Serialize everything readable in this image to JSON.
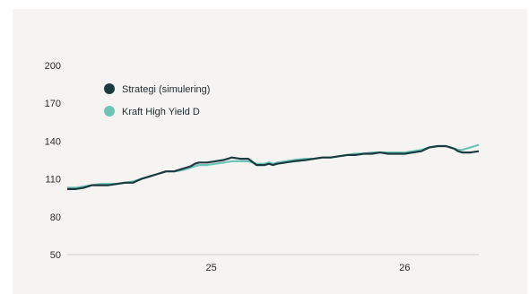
{
  "chart_data": {
    "type": "line",
    "title": "",
    "xlabel": "",
    "ylabel": "",
    "ylim": [
      50,
      200
    ],
    "yticks": [
      "200",
      "170",
      "140",
      "110",
      "80",
      "50"
    ],
    "xticks": [
      {
        "label": "25",
        "x": 0.35
      },
      {
        "label": "26",
        "x": 0.82
      }
    ],
    "xlim": [
      0,
      1
    ],
    "legend_position": "top-left",
    "grid": false,
    "series": [
      {
        "name": "Strategi (simulering)",
        "color": "#1b3a40",
        "x": [
          0.0,
          0.02,
          0.04,
          0.06,
          0.08,
          0.1,
          0.12,
          0.14,
          0.16,
          0.18,
          0.2,
          0.22,
          0.24,
          0.26,
          0.28,
          0.3,
          0.31,
          0.32,
          0.34,
          0.36,
          0.38,
          0.4,
          0.42,
          0.44,
          0.46,
          0.48,
          0.49,
          0.5,
          0.51,
          0.53,
          0.55,
          0.58,
          0.6,
          0.62,
          0.64,
          0.66,
          0.68,
          0.7,
          0.72,
          0.74,
          0.76,
          0.78,
          0.8,
          0.82,
          0.84,
          0.86,
          0.88,
          0.9,
          0.92,
          0.94,
          0.95,
          0.96,
          0.98,
          1.0
        ],
        "values": [
          102,
          102,
          103,
          105,
          105,
          105,
          106,
          107,
          107,
          110,
          112,
          114,
          116,
          116,
          118,
          120,
          122,
          123,
          123,
          124,
          125,
          127,
          126,
          126,
          121,
          121,
          122,
          121,
          122,
          123,
          124,
          125,
          126,
          127,
          127,
          128,
          129,
          129,
          130,
          130,
          131,
          130,
          130,
          130,
          131,
          132,
          135,
          136,
          136,
          134,
          132,
          131,
          131,
          132
        ]
      },
      {
        "name": "Kraft High Yield D",
        "color": "#6fc4b8",
        "x": [
          0.0,
          0.02,
          0.04,
          0.06,
          0.08,
          0.1,
          0.12,
          0.14,
          0.16,
          0.18,
          0.2,
          0.22,
          0.24,
          0.26,
          0.28,
          0.3,
          0.31,
          0.32,
          0.34,
          0.36,
          0.38,
          0.4,
          0.42,
          0.44,
          0.46,
          0.48,
          0.49,
          0.5,
          0.51,
          0.53,
          0.55,
          0.58,
          0.6,
          0.62,
          0.64,
          0.66,
          0.68,
          0.7,
          0.72,
          0.74,
          0.76,
          0.78,
          0.8,
          0.82,
          0.84,
          0.86,
          0.88,
          0.9,
          0.92,
          0.94,
          0.95,
          0.96,
          0.98,
          1.0
        ],
        "values": [
          103,
          103,
          104,
          105,
          106,
          106,
          106,
          107,
          108,
          110,
          112,
          114,
          116,
          116,
          117,
          119,
          120,
          121,
          121,
          122,
          123,
          124,
          124,
          124,
          122,
          122,
          123,
          122,
          123,
          124,
          125,
          126,
          126,
          127,
          127,
          128,
          129,
          130,
          130,
          131,
          131,
          131,
          131,
          131,
          132,
          133,
          135,
          136,
          136,
          134,
          133,
          133,
          135,
          137
        ]
      }
    ]
  }
}
